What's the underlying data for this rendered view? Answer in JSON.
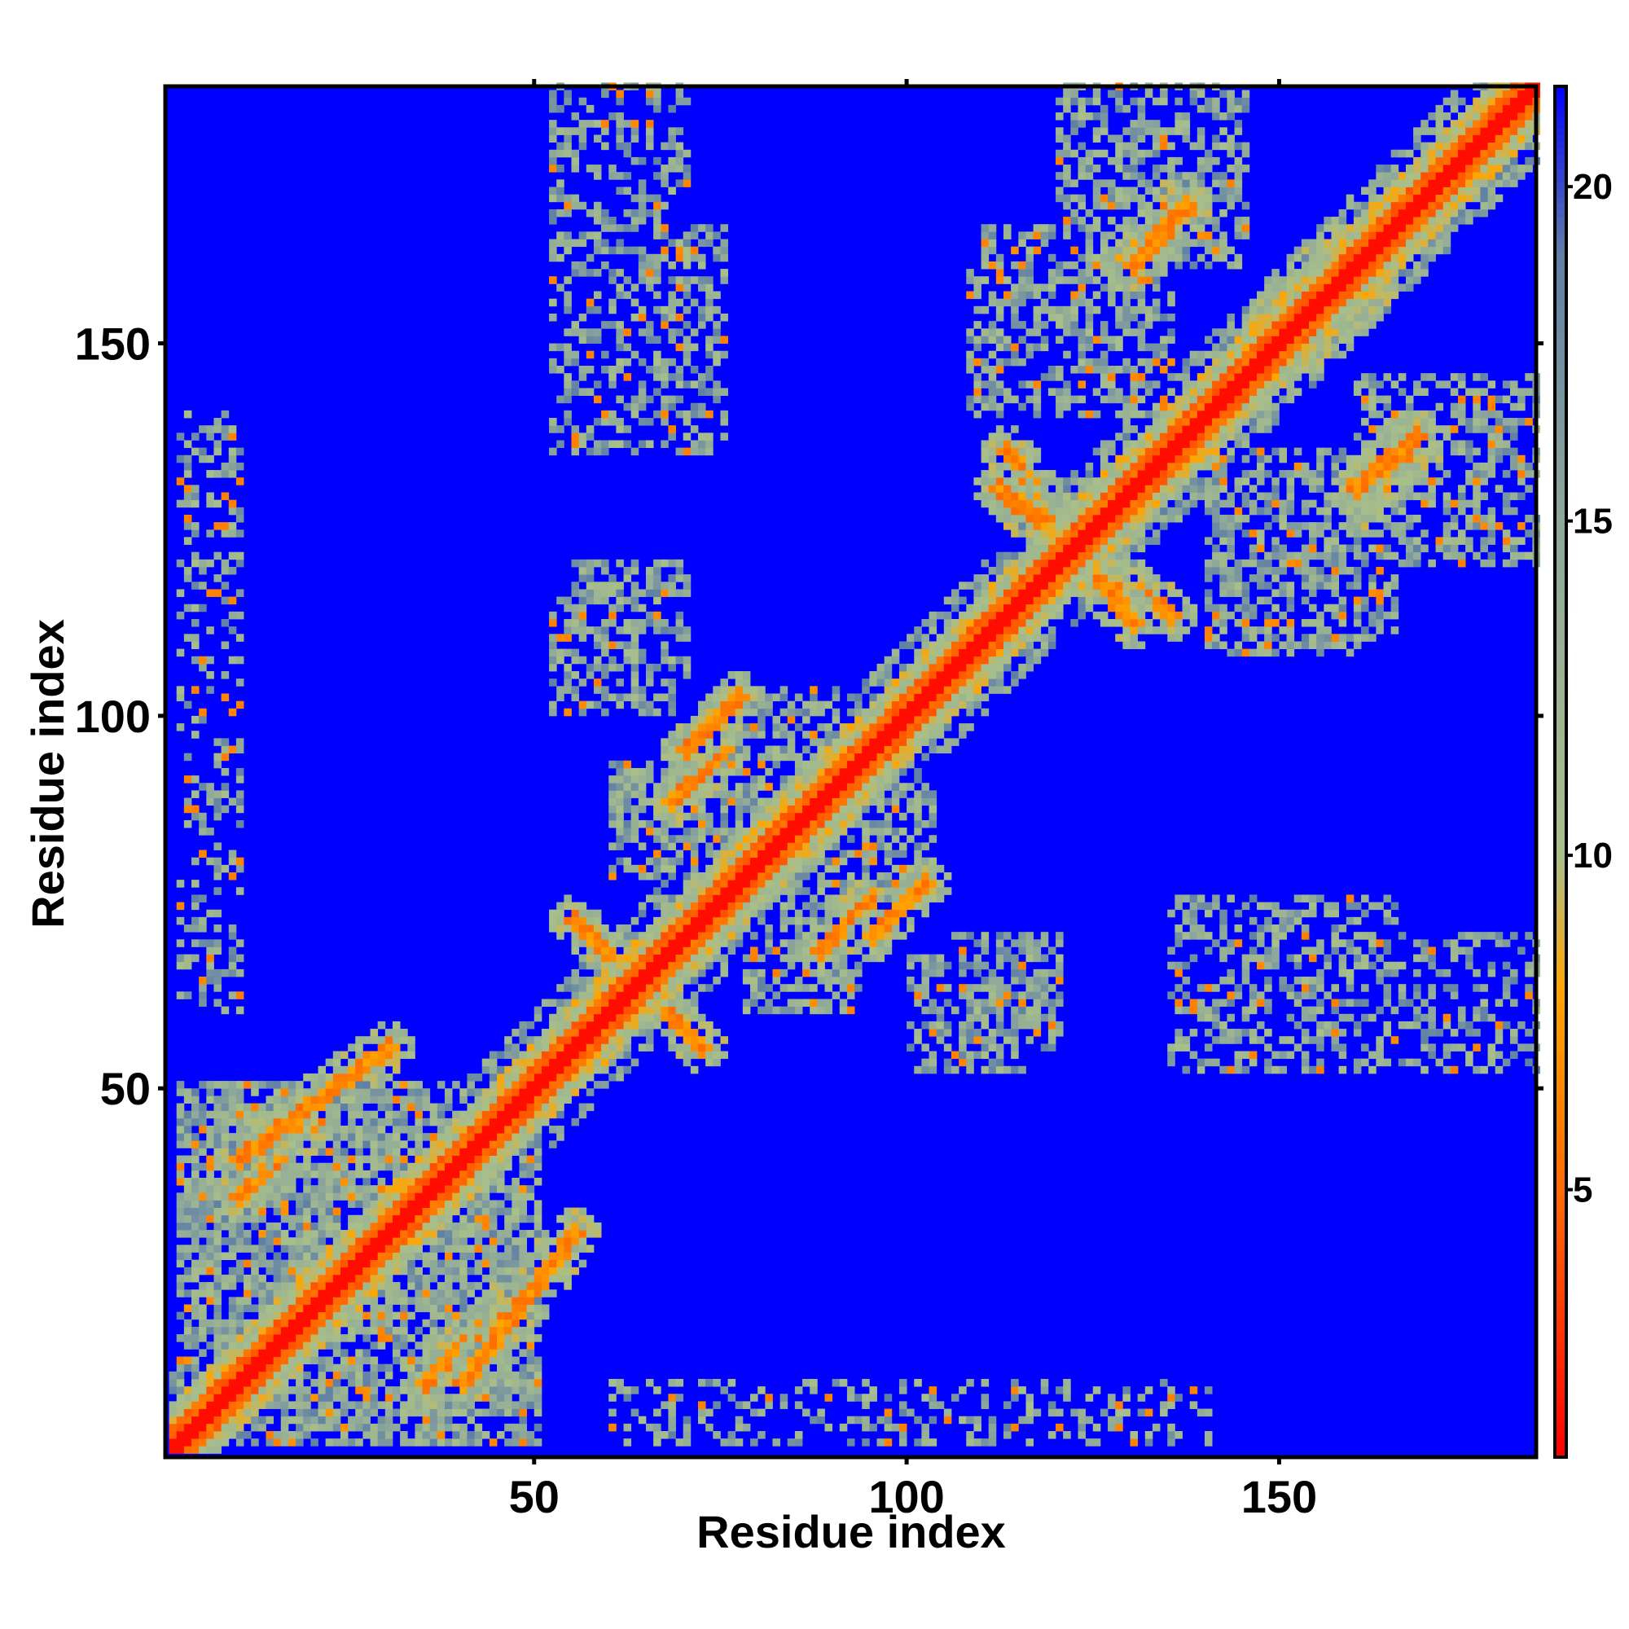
{
  "chart_data": {
    "type": "heatmap",
    "title": "",
    "xlabel": "Residue index",
    "ylabel": "Residue index",
    "n_residues": 184,
    "xlim": [
      1,
      184
    ],
    "ylim": [
      1,
      184
    ],
    "x_ticks": [
      {
        "value": 50,
        "label": "50"
      },
      {
        "value": 100,
        "label": "100"
      },
      {
        "value": 150,
        "label": "150"
      }
    ],
    "y_ticks": [
      {
        "value": 50,
        "label": "50"
      },
      {
        "value": 100,
        "label": "100"
      },
      {
        "value": 150,
        "label": "150"
      }
    ],
    "colorbar": {
      "range": [
        1,
        21.5
      ],
      "ticks": [
        {
          "value": 5,
          "label": "5"
        },
        {
          "value": 10,
          "label": "10"
        },
        {
          "value": 15,
          "label": "15"
        },
        {
          "value": 20,
          "label": "20"
        }
      ],
      "colors": [
        {
          "value": 1,
          "color": "#ff0000"
        },
        {
          "value": 5,
          "color": "#ff6a00"
        },
        {
          "value": 8,
          "color": "#ffa500"
        },
        {
          "value": 10,
          "color": "#a9bf8a"
        },
        {
          "value": 15,
          "color": "#8ea89a"
        },
        {
          "value": 19,
          "color": "#5f7fa6"
        },
        {
          "value": 21.5,
          "color": "#0000ff"
        }
      ]
    },
    "symmetric": true,
    "contact_blocks": [
      {
        "x": [
          2,
          50
        ],
        "y": [
          2,
          50
        ],
        "strength": 0.75
      },
      {
        "x": [
          55,
          70
        ],
        "y": [
          105,
          120
        ],
        "strength": 0.6
      },
      {
        "x": [
          75,
          90
        ],
        "y": [
          88,
          103
        ],
        "strength": 0.6
      },
      {
        "x": [
          78,
          93
        ],
        "y": [
          60,
          75
        ],
        "strength": 0.6
      },
      {
        "x": [
          100,
          115
        ],
        "y": [
          52,
          68
        ],
        "strength": 0.55
      },
      {
        "x": [
          55,
          75
        ],
        "y": [
          135,
          165
        ],
        "strength": 0.45
      },
      {
        "x": [
          110,
          135
        ],
        "y": [
          140,
          165
        ],
        "strength": 0.55
      },
      {
        "x": [
          140,
          160
        ],
        "y": [
          108,
          128
        ],
        "strength": 0.55
      },
      {
        "x": [
          165,
          184
        ],
        "y": [
          120,
          145
        ],
        "strength": 0.5
      },
      {
        "x": [
          130,
          145
        ],
        "y": [
          160,
          178
        ],
        "strength": 0.55
      },
      {
        "x": [
          135,
          184
        ],
        "y": [
          52,
          70
        ],
        "strength": 0.4
      },
      {
        "x": [
          2,
          10
        ],
        "y": [
          60,
          140
        ],
        "strength": 0.3
      }
    ],
    "contact_strands": [
      {
        "from": [
          40,
          10
        ],
        "to": [
          55,
          30
        ],
        "note": "antiparallel"
      },
      {
        "from": [
          55,
          72
        ],
        "to": [
          72,
          55
        ]
      },
      {
        "from": [
          70,
          95
        ],
        "to": [
          77,
          102
        ]
      },
      {
        "from": [
          85,
          82
        ],
        "to": [
          95,
          92
        ]
      },
      {
        "from": [
          88,
          68
        ],
        "to": [
          95,
          75
        ]
      },
      {
        "from": [
          112,
          130
        ],
        "to": [
          122,
          122
        ]
      },
      {
        "from": [
          122,
          122
        ],
        "to": [
          135,
          113
        ]
      },
      {
        "from": [
          130,
          160
        ],
        "to": [
          137,
          168
        ]
      },
      {
        "from": [
          148,
          153
        ],
        "to": [
          157,
          162
        ]
      },
      {
        "from": [
          160,
          128
        ],
        "to": [
          168,
          135
        ]
      },
      {
        "from": [
          10,
          35
        ],
        "to": [
          20,
          45
        ]
      }
    ]
  }
}
